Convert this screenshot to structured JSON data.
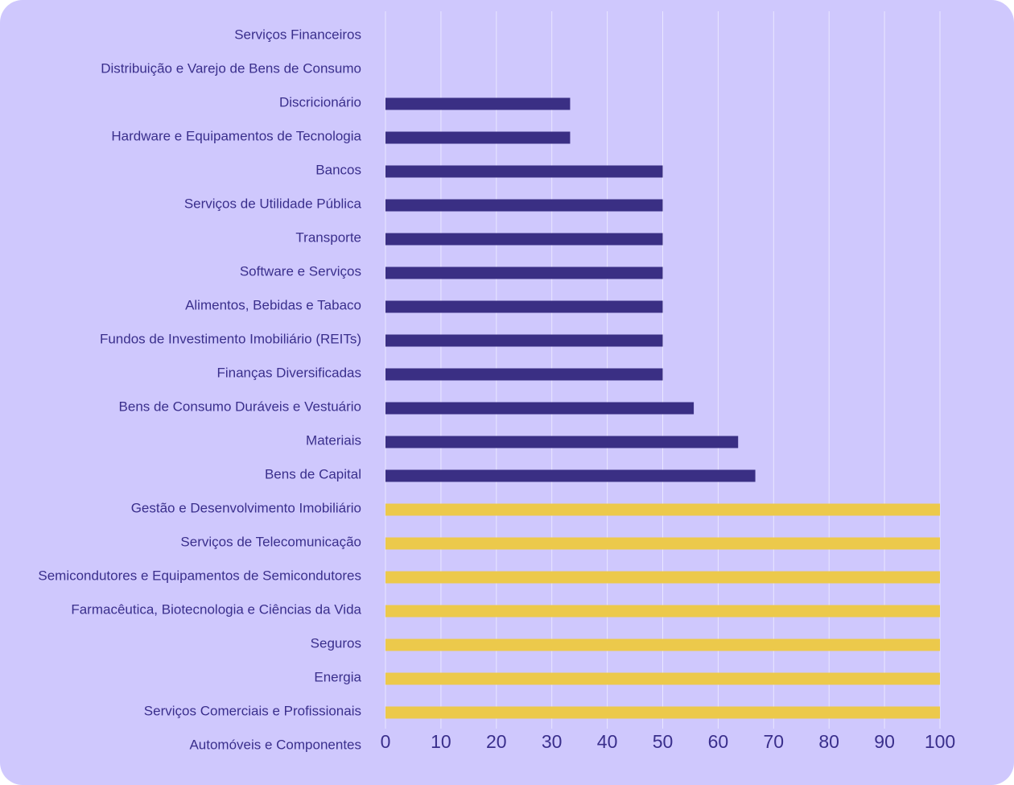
{
  "chart_data": {
    "type": "bar",
    "orientation": "horizontal",
    "title": "",
    "xlabel": "",
    "ylabel": "",
    "xlim": [
      0,
      100
    ],
    "ticks": [
      "0",
      "10",
      "20",
      "30",
      "40",
      "50",
      "60",
      "70",
      "80",
      "90",
      "100"
    ],
    "grid": true,
    "colors": {
      "background": "#cfc8fd",
      "bar_primary": "#3a2f84",
      "bar_highlight": "#ecc94b",
      "text": "#3a2f8c"
    },
    "categories": [
      "Serviços Financeiros",
      "Distribuição e Varejo de Bens de Consumo",
      "Discricionário",
      "Hardware e Equipamentos de Tecnologia",
      "Bancos",
      "Serviços de Utilidade Pública",
      "Transporte",
      "Software e Serviços",
      "Alimentos, Bebidas e Tabaco",
      "Fundos de Investimento Imobiliário (REITs)",
      "Finanças Diversificadas",
      "Bens de Consumo Duráveis e Vestuário",
      "Materiais",
      "Bens de Capital",
      "Gestão e Desenvolvimento Imobiliário",
      "Serviços de Telecomunicação",
      "Semicondutores e Equipamentos de Semicondutores",
      "Farmacêutica, Biotecnologia e Ciências da Vida",
      "Seguros",
      "Energia",
      "Serviços Comerciais e Profissionais",
      "Automóveis e Componentes"
    ],
    "values": [
      0,
      0,
      33.3,
      33.3,
      50,
      50,
      50,
      50,
      50,
      50,
      50,
      55.6,
      63.6,
      66.7,
      100,
      100,
      100,
      100,
      100,
      100,
      100,
      0
    ],
    "highlight": [
      false,
      false,
      false,
      false,
      false,
      false,
      false,
      false,
      false,
      false,
      false,
      false,
      false,
      false,
      true,
      true,
      true,
      true,
      true,
      true,
      true,
      false
    ]
  }
}
